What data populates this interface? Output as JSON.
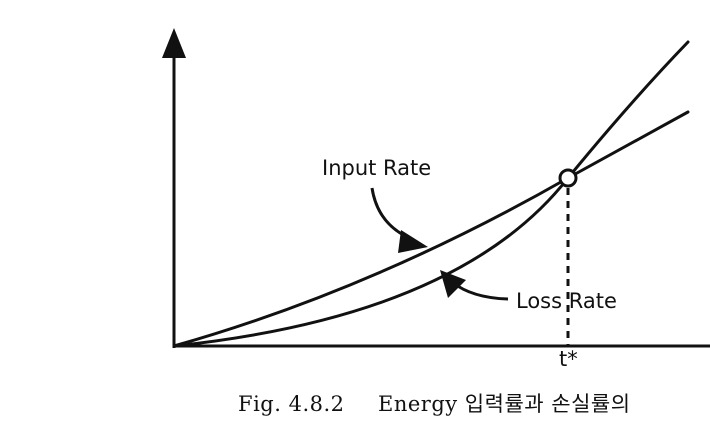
{
  "diagram": {
    "labels": {
      "input_rate": "Input Rate",
      "loss_rate": "Loss Rate",
      "t_star": "t*"
    },
    "caption": {
      "fig_number": "Fig. 4.8.2",
      "text": "Energy 입력률과 손실률의"
    },
    "colors": {
      "ink": "#111111",
      "background": "#ffffff"
    }
  }
}
